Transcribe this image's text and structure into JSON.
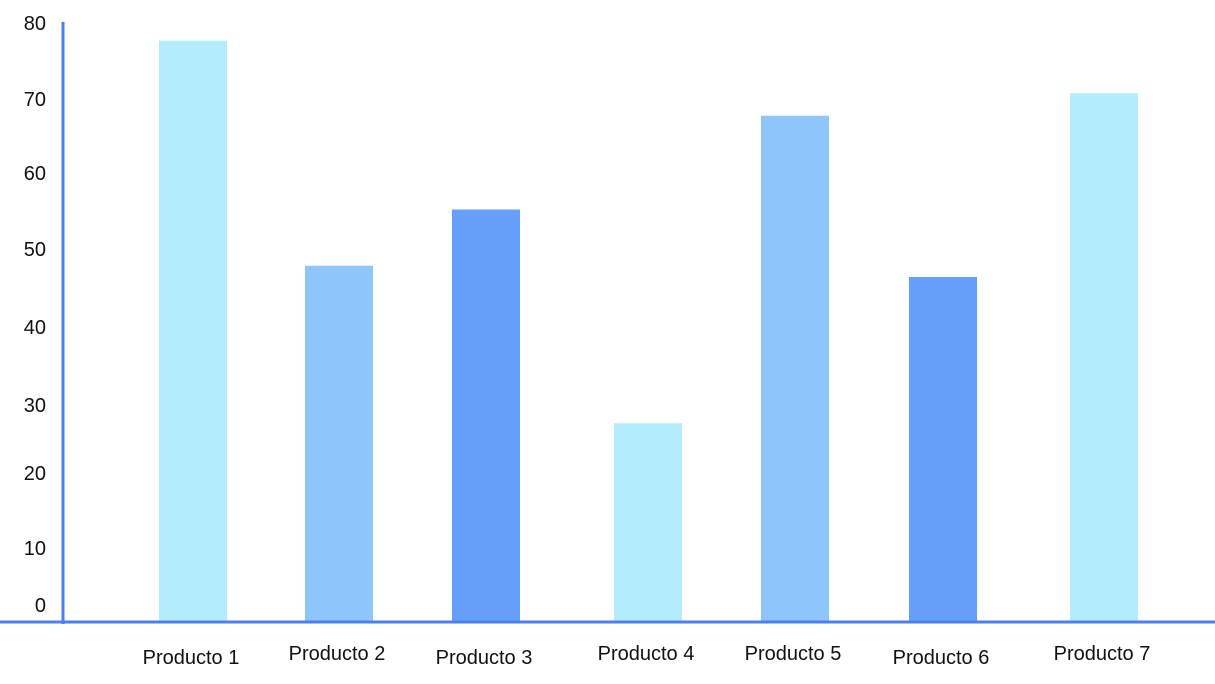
{
  "chart_data": {
    "type": "bar",
    "categories": [
      "Producto 1",
      "Producto 2",
      "Producto 3",
      "Producto 4",
      "Producto 5",
      "Producto 6",
      "Producto 7"
    ],
    "values": [
      77.5,
      47.5,
      55,
      26.5,
      67.5,
      46,
      70.5
    ],
    "bar_colors": [
      "#B3ECFC",
      "#8EC5FA",
      "#659FFA",
      "#B3ECFC",
      "#8EC5FA",
      "#659FFA",
      "#B3ECFC"
    ],
    "axis_color": "#4A7FF0",
    "yticks": [
      "0",
      "10",
      "20",
      "30",
      "40",
      "50",
      "60",
      "70",
      "80"
    ],
    "ylim": [
      0,
      80
    ],
    "grid": false,
    "title": "",
    "xlabel": "",
    "ylabel": ""
  }
}
